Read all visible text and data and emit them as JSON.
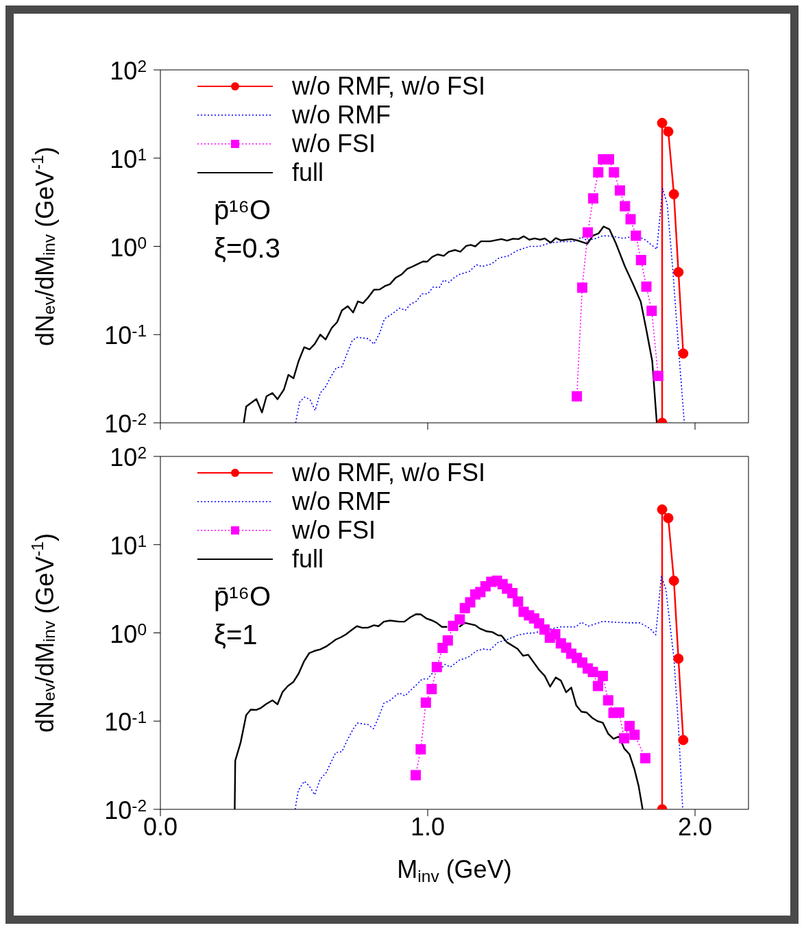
{
  "chart_data": [
    {
      "type": "line",
      "ylabel": "dN$_{ev}$/dM$_{inv}$ (GeV$^{-1}$)",
      "log": "y",
      "legend": "top left",
      "tick_labels": "y",
      "xlim": [
        0,
        2.2
      ],
      "xticks": [
        {
          "value": 0,
          "label": null
        },
        {
          "value": 1,
          "label": null
        },
        {
          "value": 2,
          "label": null
        }
      ],
      "ylim": [
        0.01,
        100
      ],
      "yticks": [
        {
          "value": 0.01,
          "label": "10$^{-2}$"
        },
        {
          "value": 0.1,
          "label": "10$^{-1}$"
        },
        {
          "value": 1,
          "label": "10$^{0}$"
        },
        {
          "value": 10,
          "label": "10$^{1}$"
        },
        {
          "value": 100,
          "label": "10$^{2}$"
        }
      ],
      "annotations": [
        "p̄¹⁶O",
        "ξ=0.3"
      ],
      "series": [
        {
          "name": "w/o RMF, w/o FSI",
          "color": "#ff0000",
          "marker": "circle",
          "line_style": "solid",
          "x": [
            1.877,
            1.877,
            1.9,
            1.921,
            1.938,
            1.956
          ],
          "values": [
            0.01,
            25,
            20,
            3.9,
            0.51,
            0.061
          ]
        },
        {
          "name": "w/o RMF",
          "color": "#0000ff",
          "marker": "none",
          "line_style": "dotted",
          "x": [
            0.506,
            0.521,
            0.54,
            0.56,
            0.579,
            0.598,
            0.617,
            0.637,
            0.658,
            0.679,
            0.699,
            0.718,
            0.737,
            0.778,
            0.799,
            0.821,
            0.838,
            0.859,
            0.896,
            0.916,
            0.936,
            0.957,
            0.979,
            1.0,
            1.021,
            1.043,
            1.06,
            1.079,
            1.098,
            1.118,
            1.156,
            1.182,
            1.203,
            1.238,
            1.267,
            1.302,
            1.336,
            1.383,
            1.417,
            1.46,
            1.503,
            1.554,
            1.575,
            1.595,
            1.622,
            1.656,
            1.691,
            1.733,
            1.776,
            1.81,
            1.857,
            1.879,
            1.896,
            1.917,
            1.938,
            1.96
          ],
          "values": [
            0.01,
            0.0172,
            0.0196,
            0.0183,
            0.0138,
            0.0218,
            0.0253,
            0.033,
            0.042,
            0.043,
            0.062,
            0.086,
            0.093,
            0.09,
            0.078,
            0.105,
            0.151,
            0.165,
            0.2,
            0.188,
            0.222,
            0.238,
            0.29,
            0.29,
            0.347,
            0.34,
            0.415,
            0.39,
            0.44,
            0.48,
            0.52,
            0.62,
            0.59,
            0.63,
            0.74,
            0.78,
            0.9,
            1.0,
            1.0,
            1.1,
            1.13,
            1.14,
            1.28,
            1.17,
            1.21,
            1.32,
            1.3,
            1.23,
            1.32,
            1.21,
            0.93,
            4.5,
            3.0,
            0.54,
            0.072,
            0.01
          ]
        },
        {
          "name": "w/o FSI",
          "color": "#ff00ff",
          "marker": "square",
          "line_style": "dotted",
          "x": [
            1.558,
            1.578,
            1.599,
            1.619,
            1.638,
            1.656,
            1.678,
            1.697,
            1.719,
            1.738,
            1.759,
            1.779,
            1.798,
            1.818,
            1.838,
            1.862
          ],
          "values": [
            0.02,
            0.34,
            1.44,
            3.5,
            6.9,
            9.7,
            9.7,
            6.9,
            4.3,
            2.85,
            2.03,
            1.32,
            0.7,
            0.35,
            0.186,
            0.034
          ]
        },
        {
          "name": "full",
          "color": "#000000",
          "marker": "none",
          "line_style": "solid",
          "x": [
            0.312,
            0.321,
            0.359,
            0.38,
            0.397,
            0.419,
            0.438,
            0.462,
            0.479,
            0.498,
            0.517,
            0.538,
            0.558,
            0.577,
            0.598,
            0.618,
            0.641,
            0.661,
            0.679,
            0.701,
            0.721,
            0.739,
            0.758,
            0.778,
            0.799,
            0.821,
            0.842,
            0.859,
            0.88,
            0.902,
            0.923,
            0.943,
            0.962,
            0.983,
            0.998,
            1.017,
            1.037,
            1.06,
            1.079,
            1.103,
            1.122,
            1.144,
            1.161,
            1.178,
            1.199,
            1.233,
            1.276,
            1.297,
            1.319,
            1.34,
            1.359,
            1.38,
            1.4,
            1.421,
            1.438,
            1.46,
            1.479,
            1.498,
            1.537,
            1.562,
            1.597,
            1.618,
            1.639,
            1.658,
            1.68,
            1.703,
            1.738,
            1.767,
            1.797,
            1.819,
            1.84,
            1.857
          ],
          "values": [
            0.01,
            0.0153,
            0.0186,
            0.0131,
            0.02,
            0.0218,
            0.0185,
            0.0238,
            0.035,
            0.032,
            0.05,
            0.072,
            0.068,
            0.078,
            0.1,
            0.088,
            0.119,
            0.138,
            0.188,
            0.21,
            0.178,
            0.238,
            0.227,
            0.265,
            0.323,
            0.325,
            0.357,
            0.373,
            0.44,
            0.48,
            0.555,
            0.59,
            0.63,
            0.675,
            0.67,
            0.76,
            0.81,
            0.78,
            0.87,
            0.91,
            0.87,
            1.01,
            1.04,
            1.0,
            1.14,
            1.14,
            1.21,
            1.16,
            1.22,
            1.21,
            1.3,
            1.19,
            1.23,
            1.19,
            1.23,
            1.1,
            1.24,
            1.17,
            1.21,
            1.16,
            1.07,
            1.32,
            1.4,
            1.68,
            1.56,
            1.1,
            0.59,
            0.38,
            0.236,
            0.109,
            0.05,
            0.01
          ]
        }
      ]
    },
    {
      "type": "line",
      "xlabel": "M$_{inv}$ (GeV)",
      "ylabel": "dN$_{ev}$/dM$_{inv}$ (GeV$^{-1}$)",
      "log": "y",
      "legend": "top left",
      "xlim": [
        0,
        2.2
      ],
      "xticks": [
        {
          "value": 0,
          "label": "0.0"
        },
        {
          "value": 1,
          "label": "1.0"
        },
        {
          "value": 2,
          "label": "2.0"
        }
      ],
      "ylim": [
        0.01,
        100
      ],
      "yticks": [
        {
          "value": 0.01,
          "label": "10$^{-2}$"
        },
        {
          "value": 0.1,
          "label": "10$^{-1}$"
        },
        {
          "value": 1,
          "label": "10$^{0}$"
        },
        {
          "value": 10,
          "label": "10$^{1}$"
        },
        {
          "value": 100,
          "label": "10$^{2}$"
        }
      ],
      "annotations": [
        "p̄¹⁶O",
        "ξ=1"
      ],
      "series": [
        {
          "name": "w/o RMF, w/o FSI",
          "color": "#ff0000",
          "marker": "circle",
          "line_style": "solid",
          "x": [
            1.877,
            1.877,
            1.9,
            1.921,
            1.938,
            1.956
          ],
          "values": [
            0.01,
            25,
            20,
            3.9,
            0.51,
            0.061
          ]
        },
        {
          "name": "w/o RMF",
          "color": "#0000ff",
          "marker": "none",
          "line_style": "dotted",
          "x": [
            0.504,
            0.516,
            0.538,
            0.557,
            0.577,
            0.598,
            0.62,
            0.641,
            0.656,
            0.679,
            0.701,
            0.722,
            0.737,
            0.778,
            0.797,
            0.816,
            0.836,
            0.859,
            0.893,
            0.915,
            0.936,
            0.957,
            0.979,
            1.0,
            1.021,
            1.043,
            1.064,
            1.085,
            1.118,
            1.152,
            1.182,
            1.208,
            1.233,
            1.263,
            1.297,
            1.336,
            1.374,
            1.4,
            1.443,
            1.468,
            1.498,
            1.554,
            1.575,
            1.601,
            1.656,
            1.699,
            1.755,
            1.794,
            1.832,
            1.853,
            1.874,
            1.891,
            1.921,
            1.938,
            1.954
          ],
          "values": [
            0.01,
            0.0164,
            0.0208,
            0.0184,
            0.0146,
            0.022,
            0.026,
            0.0355,
            0.044,
            0.045,
            0.0625,
            0.082,
            0.095,
            0.091,
            0.082,
            0.11,
            0.159,
            0.172,
            0.209,
            0.193,
            0.224,
            0.256,
            0.3,
            0.3,
            0.36,
            0.37,
            0.44,
            0.41,
            0.49,
            0.53,
            0.625,
            0.655,
            0.64,
            0.78,
            0.84,
            0.94,
            0.99,
            1.0,
            1.09,
            1.12,
            1.17,
            1.17,
            1.32,
            1.19,
            1.35,
            1.32,
            1.3,
            1.3,
            1.12,
            0.95,
            4.4,
            3.1,
            0.52,
            0.087,
            0.01
          ]
        },
        {
          "name": "w/o FSI",
          "color": "#ff00ff",
          "marker": "square",
          "line_style": "dotted",
          "x": [
            0.955,
            0.974,
            0.993,
            1.015,
            1.034,
            1.056,
            1.075,
            1.095,
            1.12,
            1.139,
            1.159,
            1.178,
            1.197,
            1.216,
            1.238,
            1.259,
            1.28,
            1.297,
            1.317,
            1.338,
            1.359,
            1.379,
            1.398,
            1.417,
            1.437,
            1.457,
            1.477,
            1.498,
            1.518,
            1.537,
            1.558,
            1.578,
            1.599,
            1.618,
            1.637,
            1.655,
            1.675,
            1.695,
            1.716,
            1.735,
            1.755,
            1.774,
            1.814
          ],
          "values": [
            0.0244,
            0.048,
            0.162,
            0.231,
            0.41,
            0.675,
            0.82,
            1.2,
            1.42,
            1.91,
            2.22,
            2.73,
            2.9,
            3.37,
            3.79,
            3.9,
            3.57,
            3.17,
            2.82,
            2.26,
            1.73,
            1.58,
            1.46,
            1.28,
            1.09,
            0.88,
            0.965,
            0.76,
            0.68,
            0.58,
            0.52,
            0.46,
            0.395,
            0.36,
            0.25,
            0.325,
            0.172,
            0.124,
            0.125,
            0.064,
            0.088,
            0.07,
            0.038
          ]
        },
        {
          "name": "full",
          "color": "#000000",
          "marker": "none",
          "line_style": "solid",
          "x": [
            0.278,
            0.28,
            0.3,
            0.321,
            0.338,
            0.359,
            0.376,
            0.397,
            0.419,
            0.438,
            0.457,
            0.477,
            0.497,
            0.517,
            0.538,
            0.557,
            0.577,
            0.598,
            0.62,
            0.637,
            0.656,
            0.675,
            0.694,
            0.714,
            0.735,
            0.756,
            0.778,
            0.799,
            0.816,
            0.836,
            0.859,
            0.893,
            0.913,
            0.936,
            0.957,
            0.974,
            0.996,
            1.017,
            1.034,
            1.053,
            1.073,
            1.094,
            1.118,
            1.139,
            1.178,
            1.195,
            1.221,
            1.242,
            1.263,
            1.276,
            1.297,
            1.336,
            1.357,
            1.376,
            1.417,
            1.438,
            1.458,
            1.479,
            1.498,
            1.518,
            1.537,
            1.556,
            1.575,
            1.595,
            1.615,
            1.635,
            1.655,
            1.675,
            1.695,
            1.716,
            1.735,
            1.755,
            1.774,
            1.789,
            1.804
          ],
          "values": [
            0.01,
            0.0355,
            0.057,
            0.117,
            0.135,
            0.134,
            0.141,
            0.157,
            0.172,
            0.155,
            0.214,
            0.25,
            0.277,
            0.345,
            0.48,
            0.59,
            0.625,
            0.65,
            0.7,
            0.76,
            0.84,
            0.89,
            0.96,
            1.07,
            1.19,
            1.14,
            1.15,
            1.22,
            1.19,
            1.34,
            1.38,
            1.34,
            1.34,
            1.51,
            1.63,
            1.62,
            1.45,
            1.38,
            1.3,
            1.17,
            1.17,
            null,
            1.17,
            1.3,
            1.22,
            1.12,
            1.04,
            1.02,
            0.94,
            0.93,
            0.78,
            0.66,
            0.55,
            0.565,
            0.38,
            0.325,
            0.246,
            0.312,
            0.288,
            0.212,
            0.24,
            0.15,
            0.128,
            0.125,
            0.109,
            0.1,
            0.096,
            0.072,
            0.063,
            0.067,
            0.049,
            0.042,
            0.028,
            0.0184,
            0.01
          ]
        }
      ]
    }
  ]
}
